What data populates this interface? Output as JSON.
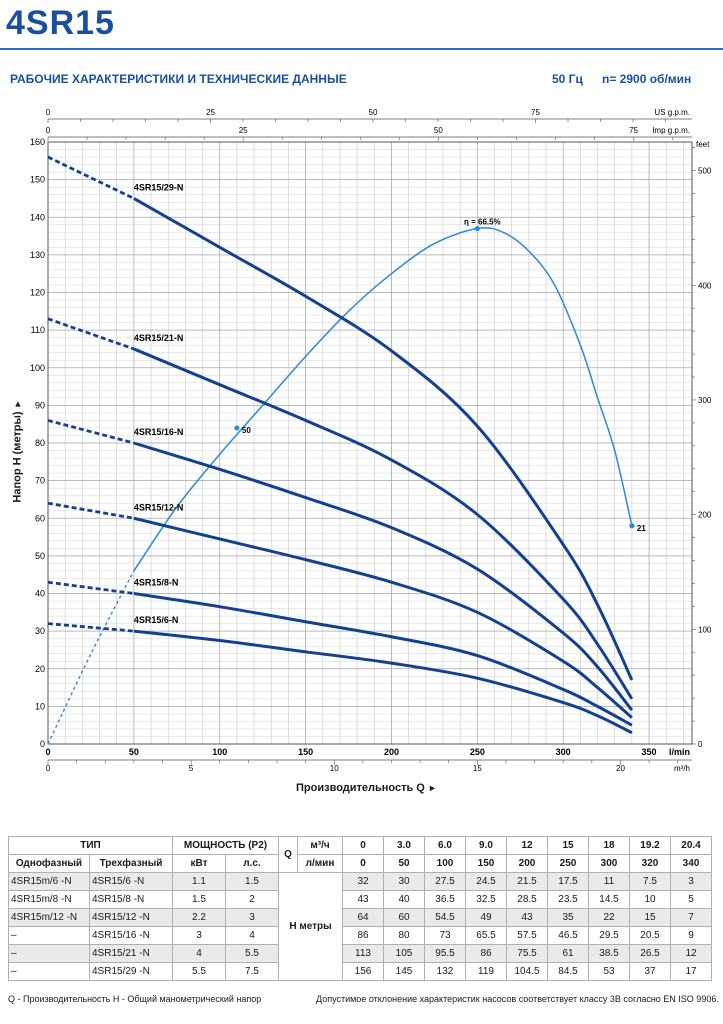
{
  "title": "4SR15",
  "subtitle": "РАБОЧИЕ ХАРАКТЕРИСТИКИ И ТЕХНИЧЕСКИЕ ДАННЫЕ",
  "frequency": "50 Гц",
  "speed": "n= 2900 об/мин",
  "colors": {
    "accent": "#1a4fa0",
    "curve": "#14418f",
    "efficiency": "#2b8ad0",
    "grid": "#9a9a9a"
  },
  "chart_data": {
    "type": "line",
    "xlabel": "Производительность Q",
    "ylabel": "Напор H (метры)",
    "x_unit_lmin": "l/min",
    "x_unit_m3h": "m³/h",
    "us_gpm_unit": "US g.p.m.",
    "imp_gpm_unit": "Imp g.p.m.",
    "feet_unit": "feet",
    "xlim": [
      0,
      375
    ],
    "ylim": [
      0,
      160
    ],
    "x_ticks_lmin": [
      0,
      50,
      100,
      150,
      200,
      250,
      300,
      350
    ],
    "y_ticks": [
      0,
      10,
      20,
      30,
      40,
      50,
      60,
      70,
      80,
      90,
      100,
      110,
      120,
      130,
      140,
      150,
      160
    ],
    "x_ticks_m3h": [
      0,
      5,
      10,
      15,
      20
    ],
    "us_gpm_ticks": [
      0,
      25,
      50,
      75
    ],
    "imp_gpm_ticks": [
      0,
      25,
      50,
      75
    ],
    "feet_ticks": [
      0,
      100,
      200,
      300,
      400,
      500
    ],
    "series": [
      {
        "name": "4SR15/29-N",
        "x": [
          0,
          50,
          100,
          150,
          200,
          250,
          300,
          320,
          340
        ],
        "values": [
          156,
          145,
          132,
          119,
          104.5,
          84.5,
          53,
          37,
          17
        ]
      },
      {
        "name": "4SR15/21-N",
        "x": [
          0,
          50,
          100,
          150,
          200,
          250,
          300,
          320,
          340
        ],
        "values": [
          113,
          105,
          95.5,
          86,
          75.5,
          61,
          38.5,
          26.5,
          12
        ]
      },
      {
        "name": "4SR15/16-N",
        "x": [
          0,
          50,
          100,
          150,
          200,
          250,
          300,
          320,
          340
        ],
        "values": [
          86,
          80,
          73,
          65.5,
          57.5,
          46.5,
          29.5,
          20.5,
          9
        ]
      },
      {
        "name": "4SR15/12-N",
        "x": [
          0,
          50,
          100,
          150,
          200,
          250,
          300,
          320,
          340
        ],
        "values": [
          64,
          60,
          54.5,
          49,
          43,
          35,
          22,
          15,
          7
        ]
      },
      {
        "name": "4SR15/8-N",
        "x": [
          0,
          50,
          100,
          150,
          200,
          250,
          300,
          320,
          340
        ],
        "values": [
          43,
          40,
          36.5,
          32.5,
          28.5,
          23.5,
          14.5,
          10,
          5
        ]
      },
      {
        "name": "4SR15/6-N",
        "x": [
          0,
          50,
          100,
          150,
          200,
          250,
          300,
          320,
          340
        ],
        "values": [
          32,
          30,
          27.5,
          24.5,
          21.5,
          17.5,
          11,
          7.5,
          3
        ]
      }
    ],
    "efficiency": {
      "x": [
        0,
        25,
        50,
        75,
        100,
        125,
        150,
        175,
        200,
        225,
        250,
        265,
        280,
        295,
        310,
        320,
        330,
        340
      ],
      "values": [
        0,
        24,
        46,
        63,
        77,
        90,
        103,
        115,
        125,
        133,
        137,
        136,
        131,
        122,
        106,
        92,
        78,
        58
      ],
      "labels": [
        {
          "x": 250,
          "y": 137,
          "text": "η = 66.5%"
        },
        {
          "x": 110,
          "y": 84,
          "text": "50"
        },
        {
          "x": 340,
          "y": 58,
          "text": "21"
        }
      ]
    }
  },
  "table": {
    "header": {
      "type": "ТИП",
      "power": "МОЩНОСТЬ (P2)",
      "single_phase": "Однофазный",
      "three_phase": "Трехфазный",
      "kw": "кВт",
      "hp": "л.с.",
      "q_letter": "Q",
      "m3h_unit": "м³/ч",
      "lmin_unit": "л/мин",
      "h_label": "H метры"
    },
    "q_m3h": [
      "0",
      "3.0",
      "6.0",
      "9.0",
      "12",
      "15",
      "18",
      "19.2",
      "20.4"
    ],
    "q_lmin": [
      "0",
      "50",
      "100",
      "150",
      "200",
      "250",
      "300",
      "320",
      "340"
    ],
    "rows": [
      {
        "single": "4SR15m/6 -N",
        "three": "4SR15/6 -N",
        "kw": "1.1",
        "hp": "1.5",
        "h": [
          "32",
          "30",
          "27.5",
          "24.5",
          "21.5",
          "17.5",
          "11",
          "7.5",
          "3"
        ]
      },
      {
        "single": "4SR15m/8 -N",
        "three": "4SR15/8 -N",
        "kw": "1.5",
        "hp": "2",
        "h": [
          "43",
          "40",
          "36.5",
          "32.5",
          "28.5",
          "23.5",
          "14.5",
          "10",
          "5"
        ]
      },
      {
        "single": "4SR15m/12 -N",
        "three": "4SR15/12 -N",
        "kw": "2.2",
        "hp": "3",
        "h": [
          "64",
          "60",
          "54.5",
          "49",
          "43",
          "35",
          "22",
          "15",
          "7"
        ]
      },
      {
        "single": "–",
        "three": "4SR15/16 -N",
        "kw": "3",
        "hp": "4",
        "h": [
          "86",
          "80",
          "73",
          "65.5",
          "57.5",
          "46.5",
          "29.5",
          "20.5",
          "9"
        ]
      },
      {
        "single": "–",
        "three": "4SR15/21 -N",
        "kw": "4",
        "hp": "5.5",
        "h": [
          "113",
          "105",
          "95.5",
          "86",
          "75.5",
          "61",
          "38.5",
          "26.5",
          "12"
        ]
      },
      {
        "single": "–",
        "three": "4SR15/29 -N",
        "kw": "5.5",
        "hp": "7.5",
        "h": [
          "156",
          "145",
          "132",
          "119",
          "104.5",
          "84.5",
          "53",
          "37",
          "17"
        ]
      }
    ]
  },
  "footer": {
    "left": "Q - Производительность  H - Общий манометрический напор",
    "right": "Допустимое отклонение характеристик насосов соответствует классу 3B согласно EN ISO 9906."
  }
}
